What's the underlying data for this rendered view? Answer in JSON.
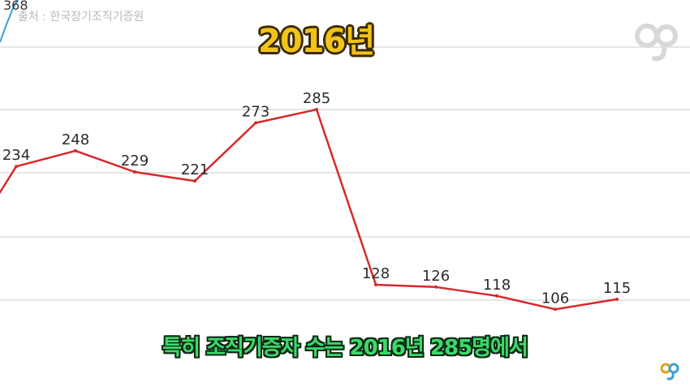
{
  "source_text": "출처 : 한국장기조직기증원",
  "overlay_year": "2016년",
  "caption": "특히 조직기증자 수는 2016년 285명에서",
  "colors": {
    "line": "#d42a2a",
    "grid": "#e6e6e6",
    "partial_line": "#3aa0d8",
    "year_text": "#f2c318",
    "caption_text": "#3ed86a"
  },
  "chart_data": {
    "type": "line",
    "title": "",
    "xlabel": "",
    "ylabel": "",
    "ylim": [
      80,
      300
    ],
    "grid": true,
    "series": [
      {
        "values": [
          null,
          234,
          248,
          229,
          221,
          273,
          285,
          128,
          126,
          118,
          106,
          115
        ]
      }
    ],
    "partial_label": "368"
  },
  "logos": [
    "watermark-logo-large",
    "watermark-logo-small"
  ]
}
